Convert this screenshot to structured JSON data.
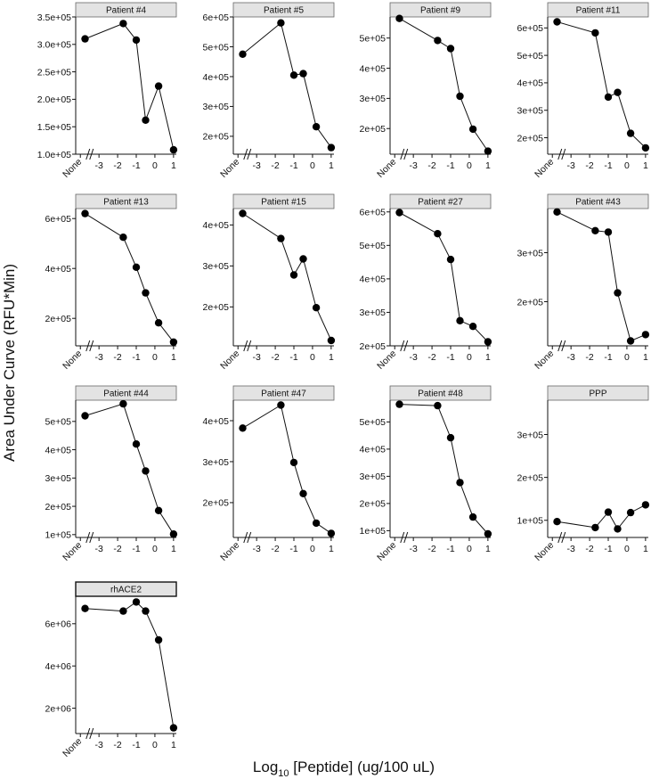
{
  "figure": {
    "ylabel": "Area Under Curve (RFU*Min)",
    "xlabel_prefix": "Log",
    "xlabel_sub": "10",
    "xlabel_suffix": " [Peptide] (ug/100 uL)"
  },
  "chart_data": {
    "type": "line",
    "x_tick_labels": [
      "None",
      "-3",
      "-2",
      "-1",
      "0",
      "1"
    ],
    "x_tick_values": [
      -4,
      -3,
      -2,
      -1,
      0,
      1
    ],
    "x_axis_break": "//",
    "x_values": [
      "None",
      -1.7,
      -1.0,
      -0.5,
      0.2,
      1.0
    ],
    "facets": [
      {
        "title": "Patient #4",
        "values": [
          310000,
          338000,
          308000,
          162000,
          224000,
          108000
        ],
        "ylim": [
          100000,
          350000
        ],
        "yticks": [
          100000,
          150000,
          200000,
          250000,
          300000,
          350000
        ],
        "ytick_labels": [
          "1.0e+05",
          "1.5e+05",
          "2.0e+05",
          "2.5e+05",
          "3.0e+05",
          "3.5e+05"
        ]
      },
      {
        "title": "Patient #5",
        "values": [
          475000,
          580000,
          405000,
          410000,
          232000,
          162000
        ],
        "ylim": [
          140000,
          600000
        ],
        "yticks": [
          200000,
          300000,
          400000,
          500000,
          600000
        ],
        "ytick_labels": [
          "2e+05",
          "3e+05",
          "4e+05",
          "5e+05",
          "6e+05"
        ]
      },
      {
        "title": "Patient #9",
        "values": [
          565000,
          492000,
          465000,
          307000,
          198000,
          125000
        ],
        "ylim": [
          115000,
          570000
        ],
        "yticks": [
          200000,
          300000,
          400000,
          500000
        ],
        "ytick_labels": [
          "2e+05",
          "3e+05",
          "4e+05",
          "5e+05"
        ]
      },
      {
        "title": "Patient #11",
        "values": [
          622000,
          582000,
          348000,
          365000,
          216000,
          163000
        ],
        "ylim": [
          140000,
          640000
        ],
        "yticks": [
          200000,
          300000,
          400000,
          500000,
          600000
        ],
        "ytick_labels": [
          "2e+05",
          "3e+05",
          "4e+05",
          "5e+05",
          "6e+05"
        ]
      },
      {
        "title": "Patient #13",
        "values": [
          620000,
          525000,
          405000,
          302000,
          182000,
          105000
        ],
        "ylim": [
          90000,
          640000
        ],
        "yticks": [
          200000,
          400000,
          600000
        ],
        "ytick_labels": [
          "2e+05",
          "4e+05",
          "6e+05"
        ]
      },
      {
        "title": "Patient #15",
        "values": [
          428000,
          367000,
          278000,
          317000,
          198000,
          118000
        ],
        "ylim": [
          105000,
          440000
        ],
        "yticks": [
          200000,
          300000,
          400000
        ],
        "ytick_labels": [
          "2e+05",
          "3e+05",
          "4e+05"
        ]
      },
      {
        "title": "Patient #27",
        "values": [
          598000,
          535000,
          458000,
          275000,
          258000,
          212000
        ],
        "ylim": [
          200000,
          610000
        ],
        "yticks": [
          200000,
          300000,
          400000,
          500000,
          600000
        ],
        "ytick_labels": [
          "2e+05",
          "3e+05",
          "4e+05",
          "5e+05",
          "6e+05"
        ]
      },
      {
        "title": "Patient #43",
        "values": [
          383000,
          345000,
          342000,
          218000,
          120000,
          133000
        ],
        "ylim": [
          110000,
          390000
        ],
        "yticks": [
          200000,
          300000
        ],
        "ytick_labels": [
          "2e+05",
          "3e+05"
        ]
      },
      {
        "title": "Patient #44",
        "values": [
          520000,
          562000,
          420000,
          325000,
          185000,
          102000
        ],
        "ylim": [
          90000,
          575000
        ],
        "yticks": [
          100000,
          200000,
          300000,
          400000,
          500000
        ],
        "ytick_labels": [
          "1e+05",
          "2e+05",
          "3e+05",
          "4e+05",
          "5e+05"
        ]
      },
      {
        "title": "Patient #47",
        "values": [
          382000,
          438000,
          298000,
          222000,
          150000,
          125000
        ],
        "ylim": [
          115000,
          450000
        ],
        "yticks": [
          200000,
          300000,
          400000
        ],
        "ytick_labels": [
          "2e+05",
          "3e+05",
          "4e+05"
        ]
      },
      {
        "title": "Patient #48",
        "values": [
          565000,
          560000,
          442000,
          277000,
          150000,
          88000
        ],
        "ylim": [
          75000,
          580000
        ],
        "yticks": [
          100000,
          200000,
          300000,
          400000,
          500000
        ],
        "ytick_labels": [
          "1e+05",
          "2e+05",
          "3e+05",
          "4e+05",
          "5e+05"
        ]
      },
      {
        "title": "PPP",
        "values": [
          97000,
          83000,
          119000,
          80000,
          118000,
          136000
        ],
        "ylim": [
          60000,
          380000
        ],
        "yticks": [
          100000,
          200000,
          300000
        ],
        "ytick_labels": [
          "1e+05",
          "2e+05",
          "3e+05"
        ]
      },
      {
        "title": "rhACE2",
        "values": [
          6720000,
          6600000,
          7030000,
          6600000,
          5230000,
          1070000
        ],
        "ylim": [
          800000,
          7300000
        ],
        "yticks": [
          2000000,
          4000000,
          6000000
        ],
        "ytick_labels": [
          "2e+06",
          "4e+06",
          "6e+06"
        ]
      }
    ]
  }
}
